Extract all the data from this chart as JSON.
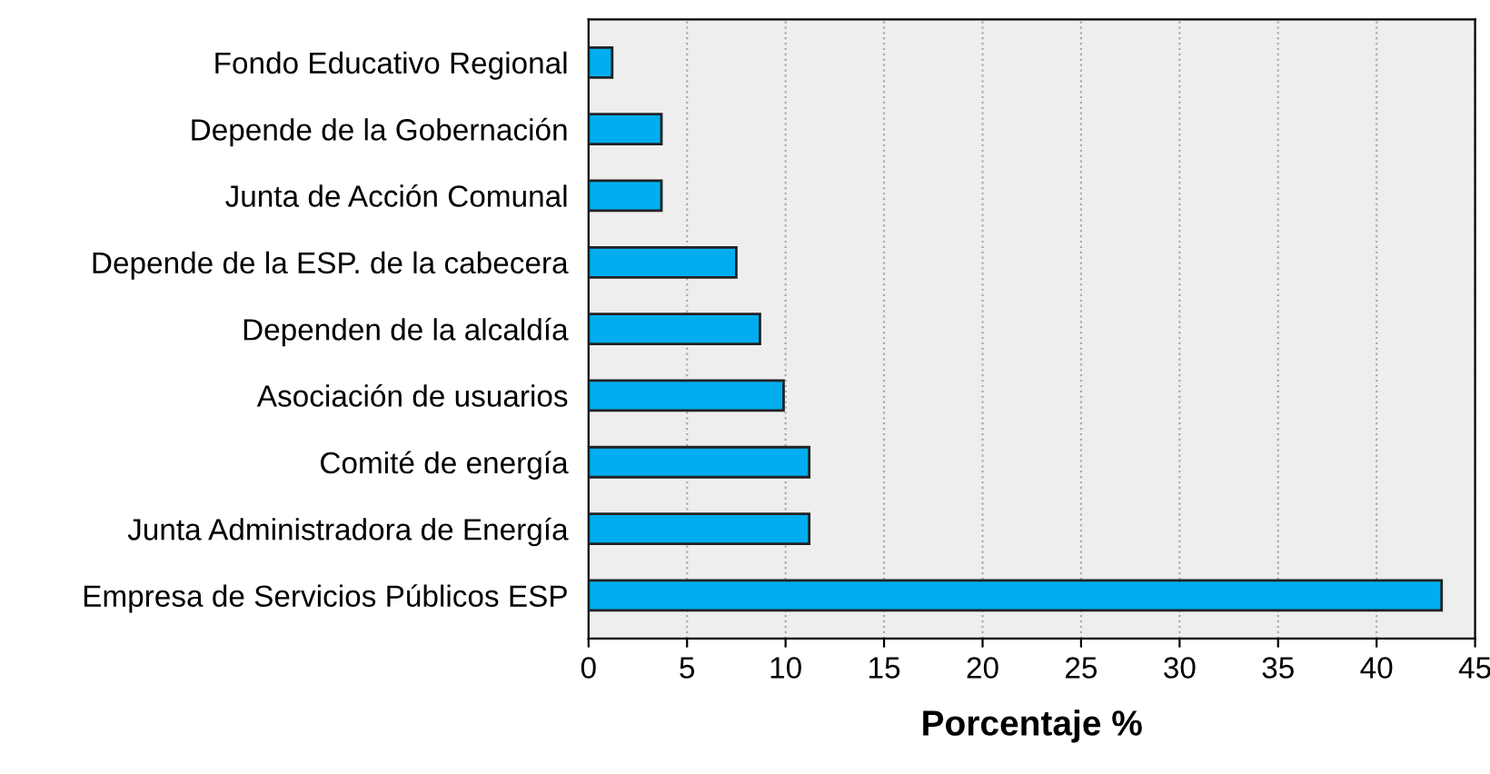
{
  "chart_data": {
    "type": "bar",
    "orientation": "horizontal",
    "xlabel": "Porcentaje %",
    "categories": [
      "Fondo Educativo Regional",
      "Depende de la Gobernación",
      "Junta de Acción Comunal",
      "Depende de la ESP. de la cabecera",
      "Dependen de la alcaldía",
      "Asociación de usuarios",
      "Comité de energía",
      "Junta Administradora de Energía",
      "Empresa de Servicios Públicos ESP"
    ],
    "values": [
      1.2,
      3.7,
      3.7,
      7.5,
      8.7,
      9.9,
      11.2,
      11.2,
      43.3
    ],
    "color": "#00aeef",
    "xlim": [
      0,
      45
    ],
    "xticks": [
      0,
      5,
      10,
      15,
      20,
      25,
      30,
      35,
      40,
      45
    ],
    "grid": "x",
    "legend": false
  }
}
